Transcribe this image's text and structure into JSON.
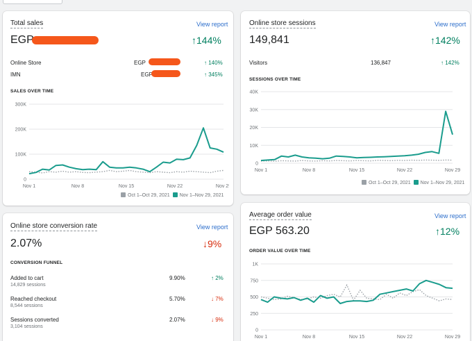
{
  "colors": {
    "current": "#1a9c8d",
    "previous": "#9aa0a6",
    "up": "#007f5f",
    "down": "#d72c0d",
    "link": "#2c6ecb"
  },
  "total_sales": {
    "title": "Total sales",
    "view_report": "View report",
    "value": "EGP",
    "change": "144%",
    "change_icon": "arrow-up-icon",
    "rows": [
      {
        "label": "Online Store",
        "value": "EGP",
        "change": "140%"
      },
      {
        "label": "IMN",
        "value": "EGP",
        "change": "345%"
      }
    ],
    "chart_heading": "SALES OVER TIME",
    "legend": {
      "previous": "Oct 1–Oct 29, 2021",
      "current": "Nov 1–Nov 29, 2021"
    }
  },
  "sessions": {
    "title": "Online store sessions",
    "view_report": "View report",
    "value": "149,841",
    "change": "142%",
    "rows": [
      {
        "label": "Visitors",
        "value": "136,847",
        "change": "142%"
      }
    ],
    "chart_heading": "SESSIONS OVER TIME",
    "legend": {
      "previous": "Oct 1–Oct 29, 2021",
      "current": "Nov 1–Nov 29, 2021"
    }
  },
  "conversion": {
    "title": "Online store conversion rate",
    "view_report": "View report",
    "value": "2.07%",
    "change": "9%",
    "funnel_heading": "CONVERSION FUNNEL",
    "funnel": [
      {
        "label": "Added to cart",
        "sub": "14,829 sessions",
        "value": "9.90%",
        "change": "2%",
        "direction": "up"
      },
      {
        "label": "Reached checkout",
        "sub": "8,544 sessions",
        "value": "5.70%",
        "change": "7%",
        "direction": "down"
      },
      {
        "label": "Sessions converted",
        "sub": "3,104 sessions",
        "value": "2.07%",
        "change": "9%",
        "direction": "down"
      }
    ]
  },
  "aov": {
    "title": "Average order value",
    "view_report": "View report",
    "value": "EGP 563.20",
    "change": "12%",
    "chart_heading": "ORDER VALUE OVER TIME"
  },
  "chart_data": [
    {
      "type": "line",
      "title": "SALES OVER TIME",
      "x_ticks": [
        "Nov 1",
        "Nov 8",
        "Nov 15",
        "Nov 22",
        "Nov 29"
      ],
      "y_ticks": [
        "0",
        "100K",
        "200K",
        "300K"
      ],
      "ylim": [
        0,
        300000
      ],
      "series": [
        {
          "name": "Nov 1–Nov 29, 2021",
          "values": [
            22000,
            27000,
            40000,
            37000,
            55000,
            57000,
            48000,
            42000,
            38000,
            40000,
            38000,
            70000,
            48000,
            45000,
            45000,
            48000,
            45000,
            40000,
            30000,
            48000,
            68000,
            65000,
            80000,
            78000,
            85000,
            135000,
            205000,
            125000,
            120000,
            108000
          ]
        },
        {
          "name": "Oct 1–Oct 29, 2021",
          "values": [
            30000,
            28000,
            25000,
            30000,
            28000,
            32000,
            28000,
            30000,
            27000,
            26000,
            28000,
            30000,
            35000,
            30000,
            32000,
            35000,
            30000,
            28000,
            26000,
            30000,
            28000,
            26000,
            30000,
            28000,
            32000,
            30000,
            28000,
            26000,
            32000,
            35000
          ]
        }
      ]
    },
    {
      "type": "line",
      "title": "SESSIONS OVER TIME",
      "x_ticks": [
        "Nov 1",
        "Nov 8",
        "Nov 15",
        "Nov 22",
        "Nov 29"
      ],
      "y_ticks": [
        "0",
        "10K",
        "20K",
        "30K",
        "40K"
      ],
      "ylim": [
        0,
        40000
      ],
      "series": [
        {
          "name": "Nov 1–Nov 29, 2021",
          "values": [
            1500,
            1800,
            2000,
            4000,
            3500,
            4500,
            3500,
            3000,
            2800,
            2500,
            2800,
            4000,
            3800,
            3500,
            3000,
            3200,
            3300,
            3500,
            3600,
            3800,
            4000,
            4200,
            4500,
            5000,
            6000,
            6500,
            5500,
            29000,
            16000
          ]
        },
        {
          "name": "Oct 1–Oct 29, 2021",
          "values": [
            1200,
            1300,
            1100,
            1400,
            1300,
            1200,
            1500,
            1300,
            1200,
            1400,
            1300,
            1500,
            1400,
            1300,
            1500,
            1400,
            1300,
            1600,
            1500,
            1400,
            1600,
            1500,
            1700,
            1600,
            1800,
            1700,
            1600,
            1800,
            1700
          ]
        }
      ]
    },
    {
      "type": "line",
      "title": "ORDER VALUE OVER TIME",
      "x_ticks": [
        "Nov 1",
        "Nov 8",
        "Nov 15",
        "Nov 22",
        "Nov 29"
      ],
      "y_ticks": [
        "0",
        "250",
        "500",
        "750",
        "1K"
      ],
      "ylim": [
        0,
        1000
      ],
      "series": [
        {
          "name": "Nov 1–Nov 29, 2021",
          "values": [
            460,
            420,
            500,
            480,
            470,
            490,
            450,
            480,
            420,
            520,
            480,
            500,
            400,
            430,
            440,
            440,
            430,
            450,
            540,
            560,
            580,
            600,
            620,
            590,
            700,
            750,
            720,
            690,
            640,
            630
          ]
        },
        {
          "name": "Oct 1–Oct 29, 2021",
          "values": [
            500,
            480,
            460,
            470,
            510,
            490,
            460,
            470,
            500,
            480,
            520,
            540,
            500,
            680,
            450,
            600,
            480,
            470,
            460,
            540,
            480,
            560,
            520,
            580,
            610,
            520,
            480,
            440,
            470,
            460
          ]
        }
      ]
    }
  ]
}
